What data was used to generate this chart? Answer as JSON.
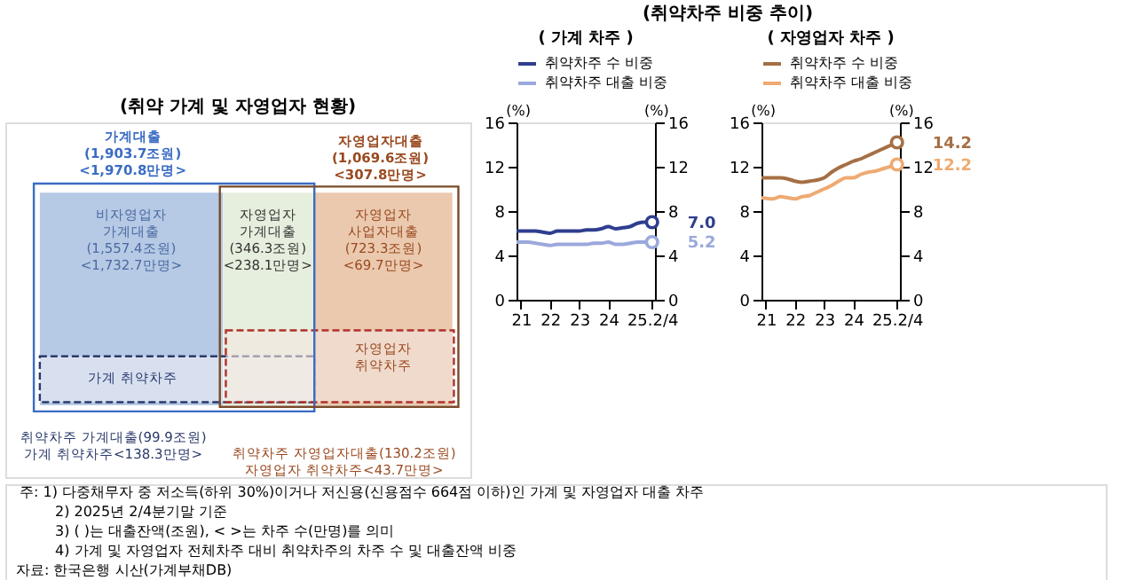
{
  "chart_data": [
    {
      "type": "other",
      "title": "(취약 가계 및 자영업자 현황)",
      "annotations": [
        "가계대출\n(1,903.7조원)\n<1,970.8만명>",
        "자영업자대출\n(1,069.6조원)\n<307.8만명>",
        "비자영업자\n가계대출\n(1,557.4조원)\n<1,732.7만명>",
        "자영업자\n가계대출\n(346.3조원)\n<238.1만명>",
        "자영업자\n사업자대출\n(723.3조원)\n<69.7만명>",
        "가계 취약차주",
        "자영업자\n취약차주",
        "취약차주 가계대출(99.9조원)\n가계 취약차주<138.3만명>",
        "취약차주 자영업자대출(130.2조원)\n자영업자 취약차주<43.7만명>"
      ]
    },
    {
      "type": "line",
      "title": "(취약차주 비중 추이)",
      "subtitle": "( 가계 차주 )",
      "x": [
        2020.85,
        2021.25,
        2021.5,
        2021.75,
        2022,
        2022.25,
        2022.5,
        2022.75,
        2023,
        2023.25,
        2023.5,
        2023.75,
        2024,
        2024.25,
        2024.5,
        2024.75,
        2025,
        2025.25,
        2025.5
      ],
      "xlim": [
        2020.85,
        2025.6
      ],
      "xticks": [
        {
          "value": 2021,
          "label": "21"
        },
        {
          "value": 2022,
          "label": "22"
        },
        {
          "value": 2023,
          "label": "23"
        },
        {
          "value": 2024,
          "label": "24"
        },
        {
          "value": 2025.5,
          "label": "25.2/4"
        }
      ],
      "ylim": [
        0,
        16
      ],
      "yticks": [
        0,
        4,
        8,
        12,
        16
      ],
      "y2lim": [
        0,
        16
      ],
      "y2ticks": [
        0,
        4,
        8,
        12,
        16
      ],
      "annotations": [
        "(%)",
        "(%)"
      ],
      "grid": false,
      "legend": "top",
      "line_style": "solid",
      "series": [
        {
          "name": "취약차주 수 비중",
          "color": "#2f3e8e",
          "values": [
            6.2,
            6.2,
            6.2,
            6.1,
            6.0,
            6.2,
            6.2,
            6.2,
            6.2,
            6.3,
            6.3,
            6.4,
            6.6,
            6.4,
            6.5,
            6.6,
            6.9,
            7.0,
            7.0
          ],
          "value_labels": [
            null,
            null,
            null,
            null,
            null,
            null,
            null,
            null,
            null,
            null,
            null,
            null,
            null,
            null,
            null,
            null,
            null,
            null,
            "7.0"
          ]
        },
        {
          "name": "취약차주 대출 비중",
          "color": "#9aa8dc",
          "values": [
            5.2,
            5.2,
            5.1,
            5.0,
            4.9,
            5.0,
            5.0,
            5.0,
            5.0,
            5.0,
            5.1,
            5.1,
            5.2,
            5.0,
            5.0,
            5.1,
            5.2,
            5.2,
            5.2
          ],
          "value_labels": [
            null,
            null,
            null,
            null,
            null,
            null,
            null,
            null,
            null,
            null,
            null,
            null,
            null,
            null,
            null,
            null,
            null,
            null,
            "5.2"
          ]
        }
      ]
    },
    {
      "type": "line",
      "subtitle": "( 자영업자 차주 )",
      "x": [
        2020.85,
        2021.25,
        2021.5,
        2021.75,
        2022,
        2022.25,
        2022.5,
        2022.75,
        2023,
        2023.25,
        2023.5,
        2023.75,
        2024,
        2024.25,
        2024.5,
        2024.75,
        2025,
        2025.25,
        2025.5
      ],
      "xlim": [
        2020.85,
        2025.6
      ],
      "xticks": [
        {
          "value": 2021,
          "label": "21"
        },
        {
          "value": 2022,
          "label": "22"
        },
        {
          "value": 2023,
          "label": "23"
        },
        {
          "value": 2024,
          "label": "24"
        },
        {
          "value": 2025.5,
          "label": "25.2/4"
        }
      ],
      "ylim": [
        0,
        16
      ],
      "yticks": [
        0,
        4,
        8,
        12,
        16
      ],
      "y2lim": [
        0,
        16
      ],
      "y2ticks": [
        0,
        4,
        8,
        12,
        16
      ],
      "annotations": [
        "(%)",
        "(%)"
      ],
      "grid": false,
      "legend": "top",
      "line_style": "solid",
      "series": [
        {
          "name": "취약차주 수 비중",
          "color": "#a56f45",
          "values": [
            11.0,
            11.0,
            11.0,
            10.9,
            10.7,
            10.6,
            10.7,
            10.8,
            11.0,
            11.5,
            11.9,
            12.2,
            12.5,
            12.7,
            13.0,
            13.3,
            13.6,
            13.9,
            14.2
          ],
          "value_labels": [
            null,
            null,
            null,
            null,
            null,
            null,
            null,
            null,
            null,
            null,
            null,
            null,
            null,
            null,
            null,
            null,
            null,
            null,
            "14.2"
          ]
        },
        {
          "name": "취약차주 대출 비중",
          "color": "#eeaa72",
          "values": [
            9.2,
            9.1,
            9.3,
            9.2,
            9.1,
            9.3,
            9.4,
            9.7,
            10.0,
            10.3,
            10.7,
            11.0,
            11.0,
            11.3,
            11.5,
            11.6,
            11.8,
            12.0,
            12.2
          ],
          "value_labels": [
            null,
            null,
            null,
            null,
            null,
            null,
            null,
            null,
            null,
            null,
            null,
            null,
            null,
            null,
            null,
            null,
            null,
            null,
            "12.2"
          ]
        }
      ]
    },
    {
      "type": "other",
      "annotations": [
        "주: 1) 다중채무자 중 저소득(하위 30%)이거나 저신용(신용점수 664점 이하)인 가계 및 자영업자 대출 차주",
        "2) 2025년 2/4분기말 기준",
        "3) (    )는 대출잔액(조원), <    >는 차주 수(만명)를 의미",
        "4) 가계 및 자영업자 전체차주 대비 취약차주의 차주 수 및 대출잔액 비중",
        "자료: 한국은행 시산(가계부채DB)"
      ]
    }
  ]
}
